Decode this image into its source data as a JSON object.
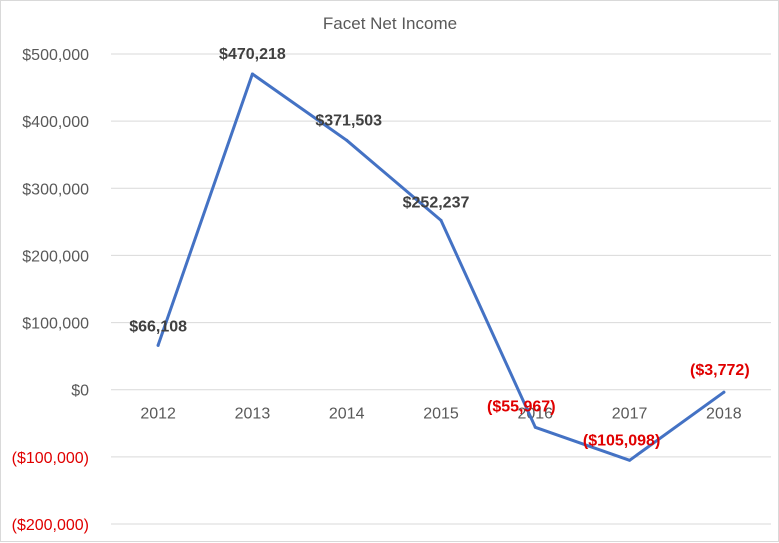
{
  "colors": {
    "line": "#4472c4",
    "grid": "#d9d9d9",
    "positive_label": "#404040",
    "negative_label": "#e00000",
    "axis_text": "#595959"
  },
  "chart_data": {
    "type": "line",
    "title": "Facet Net Income",
    "xlabel": "",
    "ylabel": "",
    "categories": [
      "2012",
      "2013",
      "2014",
      "2015",
      "2016",
      "2017",
      "2018"
    ],
    "series": [
      {
        "values": [
          66108,
          470218,
          371503,
          252237,
          -55967,
          -105098,
          -3772
        ]
      }
    ],
    "data_labels": [
      "$66,108",
      "$470,218",
      "$371,503",
      "$252,237",
      "($55,967)",
      "($105,098)",
      "($3,772)"
    ],
    "y_ticks": [
      500000,
      400000,
      300000,
      200000,
      100000,
      0,
      -100000,
      -200000
    ],
    "y_tick_labels": [
      "$500,000",
      "$400,000",
      "$300,000",
      "$200,000",
      "$100,000",
      "$0",
      "($100,000)",
      "($200,000)"
    ],
    "ylim": [
      -200000,
      500000
    ],
    "grid": true,
    "legend": "none"
  }
}
